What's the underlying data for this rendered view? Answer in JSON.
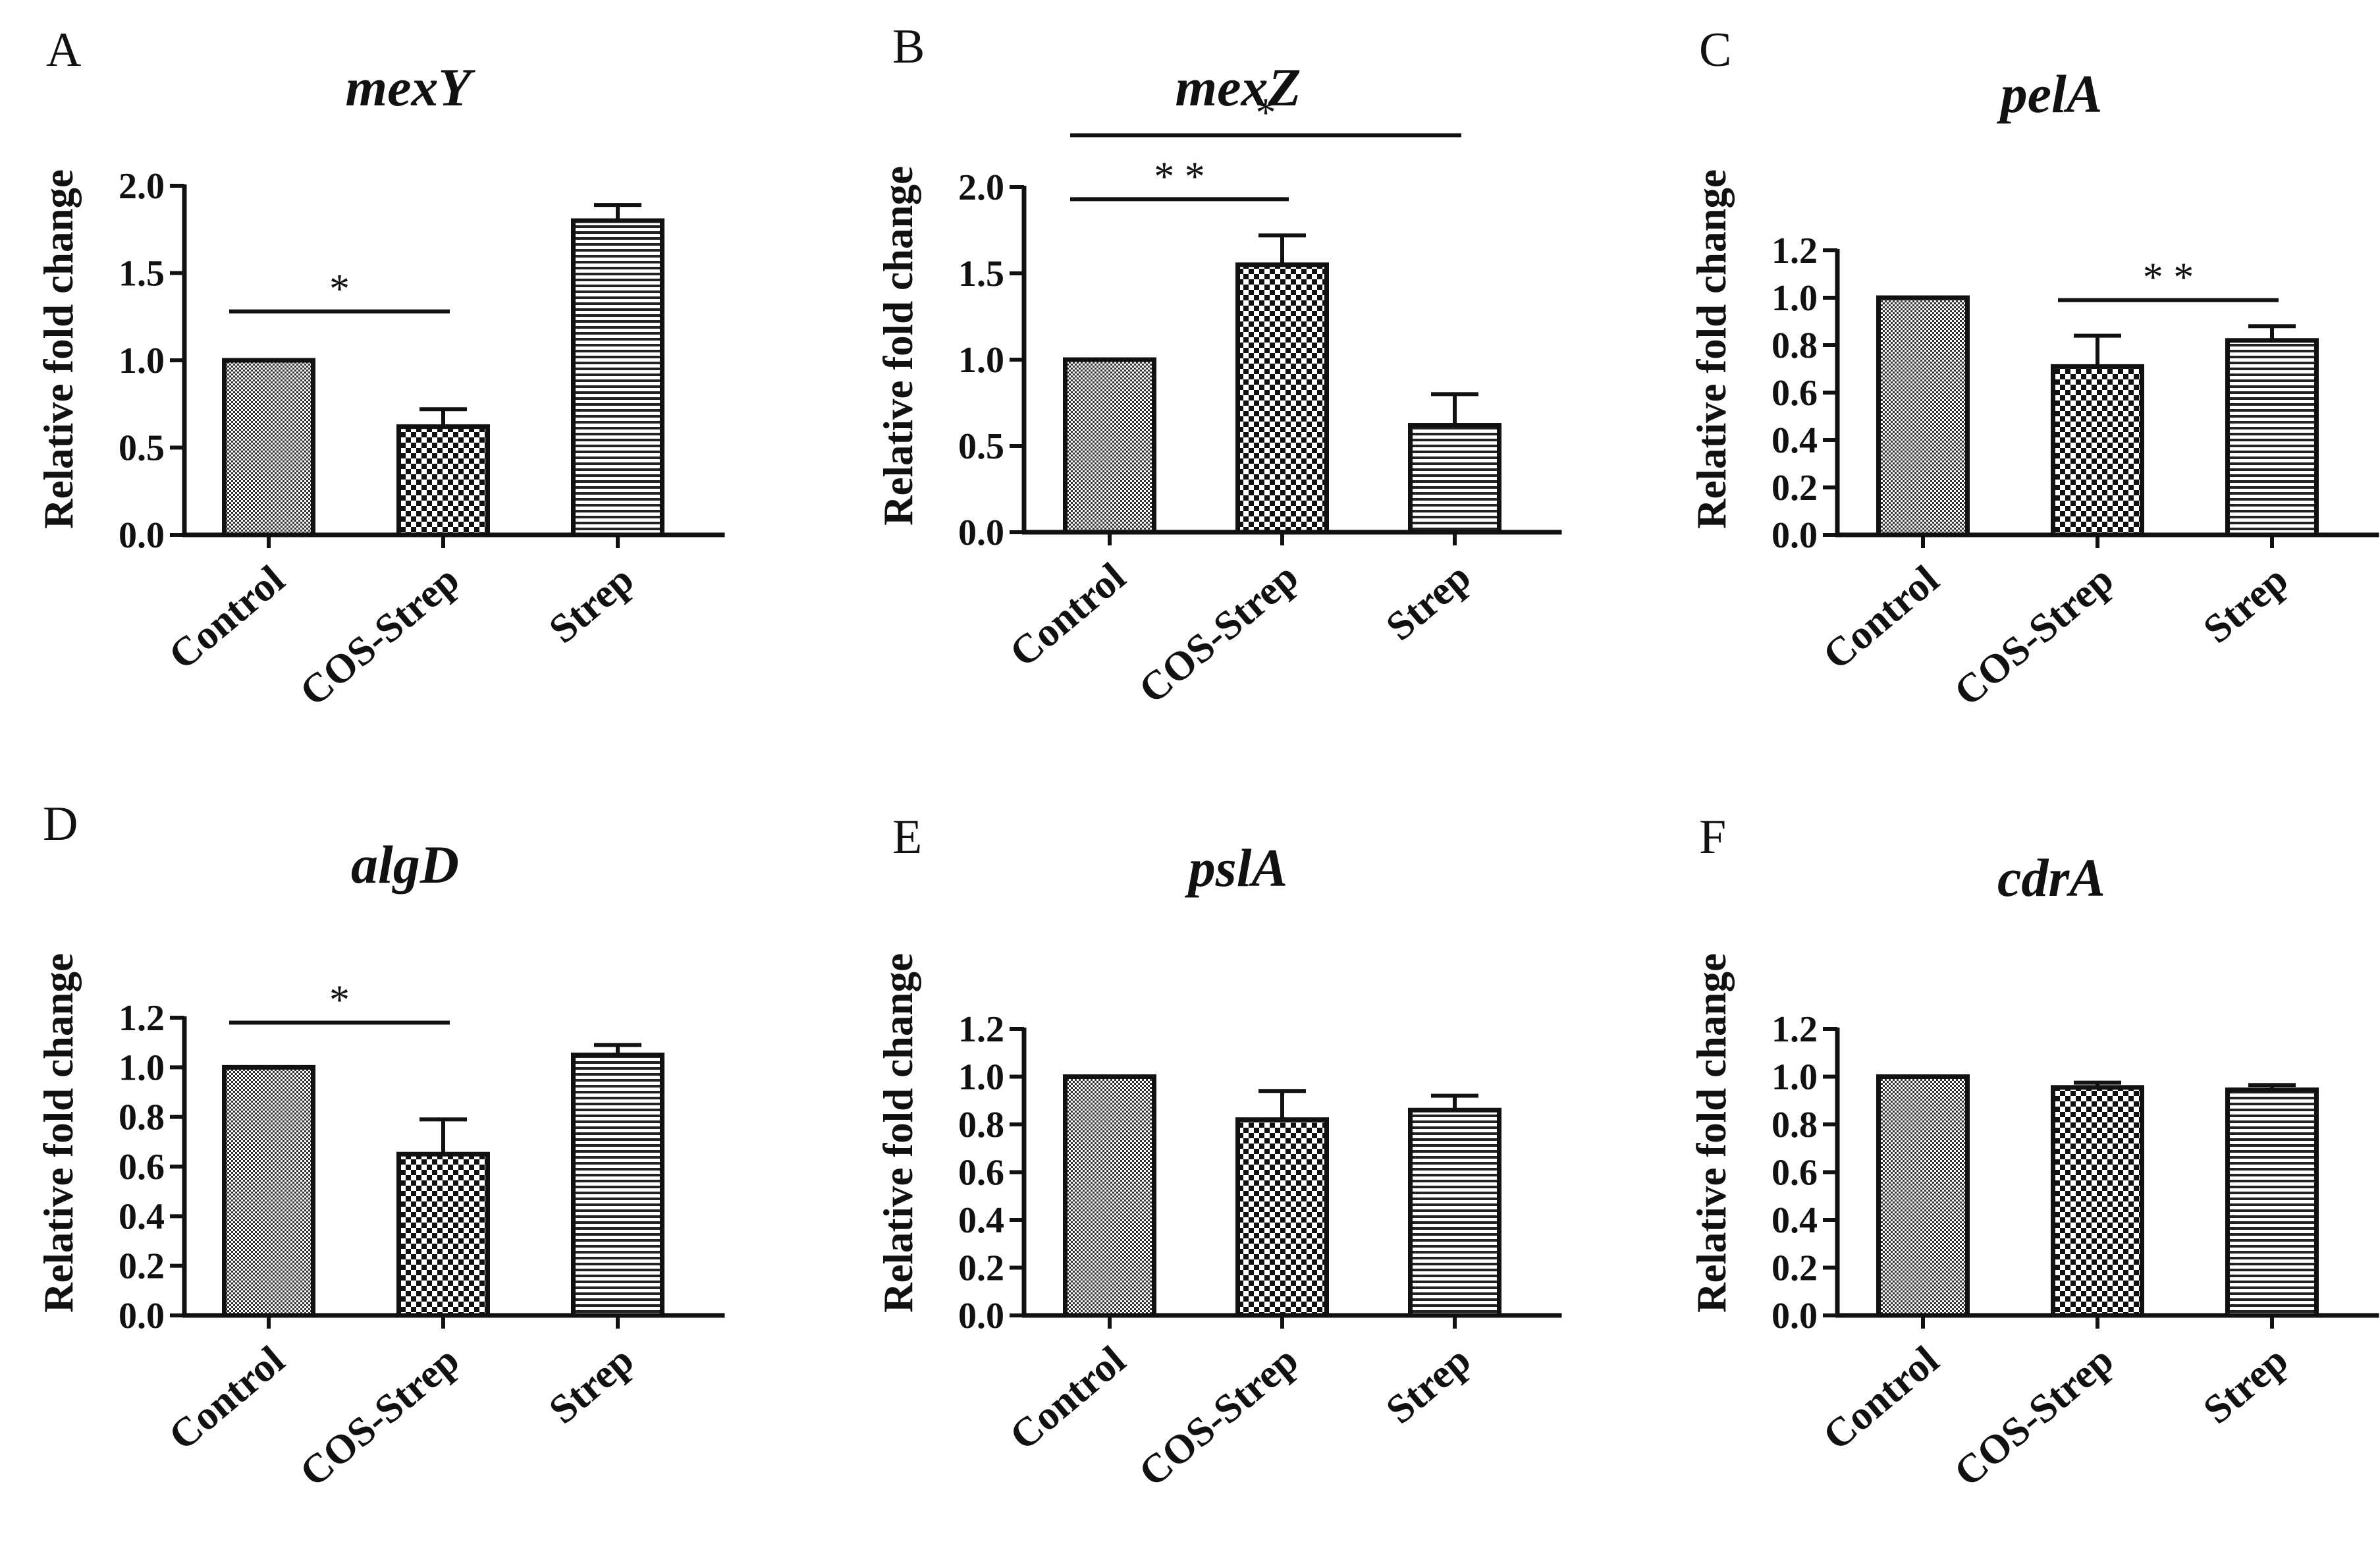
{
  "figure": {
    "background": "#ffffff",
    "ink": "#111111"
  },
  "chart_data": [
    {
      "type": "bar",
      "panel": "A",
      "title": "mexY",
      "ylabel": "Relative fold change",
      "xlabel": "",
      "categories": [
        "Control",
        "COS-Strep",
        "Strep"
      ],
      "values": [
        1.0,
        0.62,
        1.8
      ],
      "errors": [
        0.0,
        0.1,
        0.09
      ],
      "ylim": [
        0,
        2.0
      ],
      "yticks": [
        "0.0",
        "0.5",
        "1.0",
        "1.5",
        "2.0"
      ],
      "significance": [
        {
          "from": 0,
          "to": 1,
          "label": "*",
          "y": 1.28
        }
      ]
    },
    {
      "type": "bar",
      "panel": "B",
      "title": "mexZ",
      "ylabel": "Relative fold change",
      "xlabel": "",
      "categories": [
        "Control",
        "COS-Strep",
        "Strep"
      ],
      "values": [
        1.0,
        1.55,
        0.62
      ],
      "errors": [
        0.0,
        0.17,
        0.18
      ],
      "ylim": [
        0,
        2.0
      ],
      "yticks": [
        "0.0",
        "0.5",
        "1.0",
        "1.5",
        "2.0"
      ],
      "significance": [
        {
          "from": 0,
          "to": 1,
          "label": "* *",
          "y": 1.93
        },
        {
          "from": 0,
          "to": 2,
          "label": "*",
          "y": 2.3
        }
      ]
    },
    {
      "type": "bar",
      "panel": "C",
      "title": "pelA",
      "ylabel": "Relative fold change",
      "xlabel": "",
      "categories": [
        "Control",
        "COS-Strep",
        "Strep"
      ],
      "values": [
        1.0,
        0.71,
        0.82
      ],
      "errors": [
        0.0,
        0.13,
        0.06
      ],
      "ylim": [
        0,
        1.2
      ],
      "yticks": [
        "0.0",
        "0.2",
        "0.4",
        "0.6",
        "0.8",
        "1.0",
        "1.2"
      ],
      "significance": [
        {
          "from": 1,
          "to": 2,
          "label": "* *",
          "y": 0.99
        }
      ]
    },
    {
      "type": "bar",
      "panel": "D",
      "title": "algD",
      "ylabel": "Relative fold change",
      "xlabel": "",
      "categories": [
        "Control",
        "COS-Strep",
        "Strep"
      ],
      "values": [
        1.0,
        0.65,
        1.05
      ],
      "errors": [
        0.0,
        0.14,
        0.04
      ],
      "ylim": [
        0,
        1.2
      ],
      "yticks": [
        "0.0",
        "0.2",
        "0.4",
        "0.6",
        "0.8",
        "1.0",
        "1.2"
      ],
      "significance": [
        {
          "from": 0,
          "to": 1,
          "label": "*",
          "y": 1.18
        }
      ]
    },
    {
      "type": "bar",
      "panel": "E",
      "title": "pslA",
      "ylabel": "Relative fold change",
      "xlabel": "",
      "categories": [
        "Control",
        "COS-Strep",
        "Strep"
      ],
      "values": [
        1.0,
        0.82,
        0.86
      ],
      "errors": [
        0.0,
        0.12,
        0.06
      ],
      "ylim": [
        0,
        1.2
      ],
      "yticks": [
        "0.0",
        "0.2",
        "0.4",
        "0.6",
        "0.8",
        "1.0",
        "1.2"
      ],
      "significance": []
    },
    {
      "type": "bar",
      "panel": "F",
      "title": "cdrA",
      "ylabel": "Relative fold change",
      "xlabel": "",
      "categories": [
        "Control",
        "COS-Strep",
        "Strep"
      ],
      "values": [
        1.0,
        0.955,
        0.945
      ],
      "errors": [
        0.0,
        0.02,
        0.02
      ],
      "ylim": [
        0,
        1.2
      ],
      "yticks": [
        "0.0",
        "0.2",
        "0.4",
        "0.6",
        "0.8",
        "1.0",
        "1.2"
      ],
      "significance": []
    }
  ]
}
